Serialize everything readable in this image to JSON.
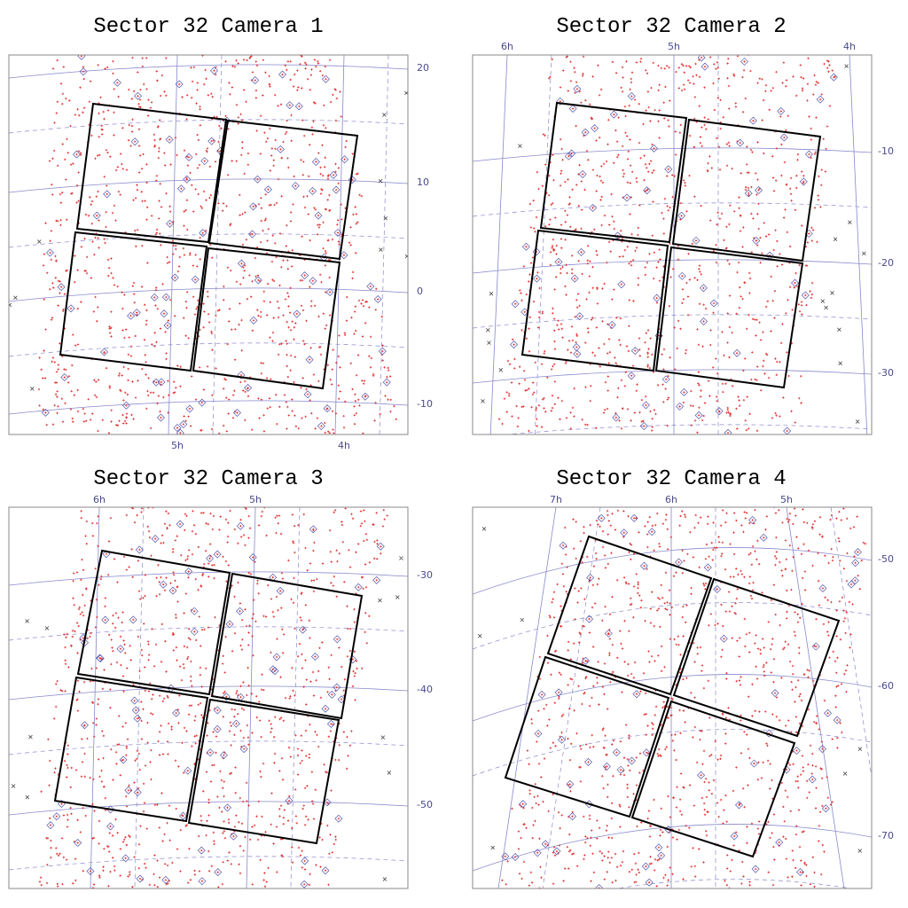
{
  "panels": [
    {
      "title": "Sector 32 Camera 1",
      "ra_labels": [
        "5h",
        "4h"
      ],
      "dec_labels": [
        "20",
        "10",
        "0",
        "-10"
      ]
    },
    {
      "title": "Sector 32 Camera 2",
      "ra_labels": [
        "6h",
        "5h",
        "4h"
      ],
      "dec_labels": [
        "-10",
        "-20",
        "-30"
      ]
    },
    {
      "title": "Sector 32 Camera 3",
      "ra_labels": [
        "6h",
        "5h"
      ],
      "dec_labels": [
        "-30",
        "-40",
        "-50"
      ]
    },
    {
      "title": "Sector 32 Camera 4",
      "ra_labels": [
        "7h",
        "6h",
        "5h"
      ],
      "dec_labels": [
        "-50",
        "-60",
        "-70"
      ]
    }
  ]
}
